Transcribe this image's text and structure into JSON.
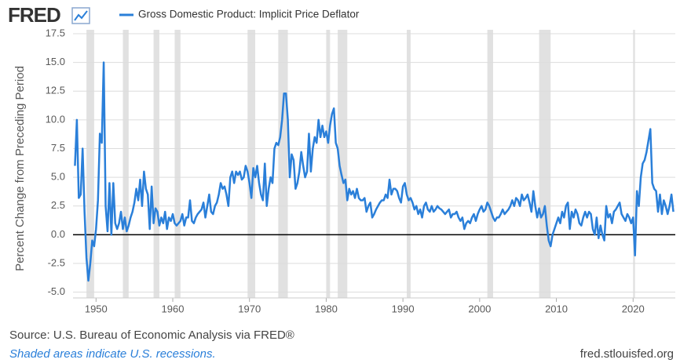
{
  "logo": "FRED",
  "chart_data": {
    "type": "line",
    "y_label": "Percent Change from Preceding Period",
    "series": [
      {
        "name": "Gross Domestic Product: Implicit Price Deflator",
        "color": "#2a7fd9",
        "x": [
          1947.25,
          1947.5,
          1947.75,
          1948,
          1948.25,
          1948.5,
          1948.75,
          1949,
          1949.25,
          1949.5,
          1949.75,
          1950,
          1950.25,
          1950.5,
          1950.75,
          1951,
          1951.25,
          1951.5,
          1951.75,
          1952,
          1952.25,
          1952.5,
          1952.75,
          1953,
          1953.25,
          1953.5,
          1953.75,
          1954,
          1954.25,
          1954.5,
          1954.75,
          1955,
          1955.25,
          1955.5,
          1955.75,
          1956,
          1956.25,
          1956.5,
          1956.75,
          1957,
          1957.25,
          1957.5,
          1957.75,
          1958,
          1958.25,
          1958.5,
          1958.75,
          1959,
          1959.25,
          1959.5,
          1959.75,
          1960,
          1960.25,
          1960.5,
          1960.75,
          1961,
          1961.25,
          1961.5,
          1961.75,
          1962,
          1962.25,
          1962.5,
          1962.75,
          1963,
          1963.25,
          1963.5,
          1963.75,
          1964,
          1964.25,
          1964.5,
          1964.75,
          1965,
          1965.25,
          1965.5,
          1965.75,
          1966,
          1966.25,
          1966.5,
          1966.75,
          1967,
          1967.25,
          1967.5,
          1967.75,
          1968,
          1968.25,
          1968.5,
          1968.75,
          1969,
          1969.25,
          1969.5,
          1969.75,
          1970,
          1970.25,
          1970.5,
          1970.75,
          1971,
          1971.25,
          1971.5,
          1971.75,
          1972,
          1972.25,
          1972.5,
          1972.75,
          1973,
          1973.25,
          1973.5,
          1973.75,
          1974,
          1974.25,
          1974.5,
          1974.75,
          1975,
          1975.25,
          1975.5,
          1975.75,
          1976,
          1976.25,
          1976.5,
          1976.75,
          1977,
          1977.25,
          1977.5,
          1977.75,
          1978,
          1978.25,
          1978.5,
          1978.75,
          1979,
          1979.25,
          1979.5,
          1979.75,
          1980,
          1980.25,
          1980.5,
          1980.75,
          1981,
          1981.25,
          1981.5,
          1981.75,
          1982,
          1982.25,
          1982.5,
          1982.75,
          1983,
          1983.25,
          1983.5,
          1983.75,
          1984,
          1984.25,
          1984.5,
          1984.75,
          1985,
          1985.25,
          1985.5,
          1985.75,
          1986,
          1986.25,
          1986.5,
          1986.75,
          1987,
          1987.25,
          1987.5,
          1987.75,
          1988,
          1988.25,
          1988.5,
          1988.75,
          1989,
          1989.25,
          1989.5,
          1989.75,
          1990,
          1990.25,
          1990.5,
          1990.75,
          1991,
          1991.25,
          1991.5,
          1991.75,
          1992,
          1992.25,
          1992.5,
          1992.75,
          1993,
          1993.25,
          1993.5,
          1993.75,
          1994,
          1994.25,
          1994.5,
          1994.75,
          1995,
          1995.25,
          1995.5,
          1995.75,
          1996,
          1996.25,
          1996.5,
          1996.75,
          1997,
          1997.25,
          1997.5,
          1997.75,
          1998,
          1998.25,
          1998.5,
          1998.75,
          1999,
          1999.25,
          1999.5,
          1999.75,
          2000,
          2000.25,
          2000.5,
          2000.75,
          2001,
          2001.25,
          2001.5,
          2001.75,
          2002,
          2002.25,
          2002.5,
          2002.75,
          2003,
          2003.25,
          2003.5,
          2003.75,
          2004,
          2004.25,
          2004.5,
          2004.75,
          2005,
          2005.25,
          2005.5,
          2005.75,
          2006,
          2006.25,
          2006.5,
          2006.75,
          2007,
          2007.25,
          2007.5,
          2007.75,
          2008,
          2008.25,
          2008.5,
          2008.75,
          2009,
          2009.25,
          2009.5,
          2009.75,
          2010,
          2010.25,
          2010.5,
          2010.75,
          2011,
          2011.25,
          2011.5,
          2011.75,
          2012,
          2012.25,
          2012.5,
          2012.75,
          2013,
          2013.25,
          2013.5,
          2013.75,
          2014,
          2014.25,
          2014.5,
          2014.75,
          2015,
          2015.25,
          2015.5,
          2015.75,
          2016,
          2016.25,
          2016.5,
          2016.75,
          2017,
          2017.25,
          2017.5,
          2017.75,
          2018,
          2018.25,
          2018.5,
          2018.75,
          2019,
          2019.25,
          2019.5,
          2019.75,
          2020,
          2020.25,
          2020.5,
          2020.75,
          2021,
          2021.25,
          2021.5,
          2021.75,
          2022,
          2022.25,
          2022.5,
          2022.75,
          2023,
          2023.25,
          2023.5,
          2023.75,
          2024,
          2024.25,
          2024.5,
          2024.75,
          2025,
          2025.25
        ],
        "values": [
          6,
          10,
          3.2,
          3.5,
          7.5,
          2,
          -2,
          -4,
          -2.5,
          -0.5,
          -1,
          0.5,
          3,
          8.8,
          8,
          15,
          2.5,
          0.3,
          4.5,
          0,
          4.5,
          1,
          0.5,
          1,
          2,
          0.5,
          1.5,
          0.3,
          0.8,
          1.5,
          2,
          2.8,
          4,
          3,
          4.8,
          2.5,
          5.5,
          4,
          3.5,
          0.5,
          4.2,
          1,
          2.3,
          2,
          0.8,
          1.5,
          1,
          2,
          0.5,
          1.5,
          1.2,
          1.8,
          1,
          0.8,
          1,
          1.2,
          1.8,
          0.8,
          1.5,
          1.5,
          3,
          1.2,
          1,
          1.5,
          1.8,
          2,
          2.2,
          2.8,
          1.5,
          2.5,
          3.5,
          2,
          1.8,
          2.5,
          2.8,
          3.5,
          4.5,
          4,
          4.2,
          3.5,
          2.5,
          5,
          5.5,
          4.5,
          5.5,
          5.2,
          5.5,
          4.8,
          5,
          6,
          5.5,
          4.5,
          3.2,
          5.8,
          5,
          6,
          4.5,
          3.5,
          3,
          6.2,
          2.5,
          4,
          5,
          4.5,
          7.5,
          8,
          7.8,
          8.5,
          10,
          12.3,
          12.3,
          10,
          5,
          7,
          6.5,
          4,
          4.5,
          5.5,
          7.2,
          6,
          5,
          5.5,
          8.8,
          5.5,
          7.5,
          8.5,
          8,
          10,
          8.5,
          9.5,
          8.5,
          9,
          8,
          9.5,
          10.5,
          11,
          8,
          7.5,
          6,
          5.2,
          4.5,
          4.8,
          3,
          4,
          3.5,
          3.8,
          3.2,
          4,
          3.2,
          3,
          3,
          3.2,
          2,
          2.5,
          2.8,
          1.5,
          1.8,
          2.2,
          2.5,
          2.8,
          3,
          3,
          3.5,
          3.2,
          4.8,
          3.5,
          4,
          4,
          3.8,
          3.2,
          2.8,
          4.2,
          4.5,
          3.5,
          3,
          3.2,
          2.8,
          2.2,
          2.5,
          1.8,
          2.2,
          1.5,
          2.5,
          2.8,
          2.2,
          2,
          2.5,
          2,
          2.2,
          2.5,
          2.3,
          2.2,
          2,
          1.8,
          2,
          2.2,
          1.5,
          1.8,
          1.8,
          2,
          1.5,
          1.2,
          1.5,
          0.5,
          1,
          1.2,
          1,
          1.5,
          1.8,
          1.2,
          1.8,
          2.2,
          2.5,
          2,
          2.2,
          2.8,
          2.5,
          2,
          1.5,
          1.2,
          1.5,
          1.5,
          1.8,
          2.2,
          1.8,
          2,
          2.2,
          2.5,
          3,
          2.5,
          3.2,
          3,
          2.5,
          3.5,
          3,
          3.2,
          3.5,
          2.8,
          2,
          3.8,
          2.5,
          1.5,
          2.3,
          1.5,
          1.8,
          2.5,
          0.8,
          -0.5,
          -1,
          0,
          0.5,
          1,
          1.5,
          1,
          2,
          1.5,
          2.5,
          2.8,
          0.5,
          2,
          1.5,
          2.2,
          1.8,
          1,
          0.8,
          1.5,
          2,
          1.5,
          2,
          1.8,
          0.5,
          0,
          1.5,
          -0.3,
          0.8,
          0,
          -0.5,
          2.5,
          1.5,
          1.8,
          1,
          2,
          2.2,
          2.5,
          2.8,
          1.8,
          1.5,
          1.2,
          1.8,
          1.5,
          1,
          1.5,
          -1.8,
          3.8,
          2.5,
          5,
          6.2,
          6.5,
          7.2,
          8.2,
          9.2,
          4.5,
          4,
          3.8,
          2,
          3.5,
          1.8,
          3,
          2.5,
          1.8,
          2.5,
          3.5,
          2
        ]
      }
    ],
    "recessions": [
      [
        1948.75,
        1949.75
      ],
      [
        1953.5,
        1954.25
      ],
      [
        1957.5,
        1958.25
      ],
      [
        1960.25,
        1961
      ],
      [
        1969.75,
        1970.75
      ],
      [
        1973.75,
        1975
      ],
      [
        1980,
        1980.5
      ],
      [
        1981.5,
        1982.75
      ],
      [
        1990.5,
        1991
      ],
      [
        2001,
        2001.75
      ],
      [
        2007.75,
        2009.25
      ],
      [
        2020,
        2020.25
      ]
    ],
    "recession_color": "#e1e1e1",
    "xlim": [
      1947,
      2025.5
    ],
    "xticks": [
      1950,
      1960,
      1970,
      1980,
      1990,
      2000,
      2010,
      2020
    ],
    "ylim": [
      -5.5,
      17.5
    ],
    "yticks": [
      17.5,
      {
        "value": 15,
        "label": "15.0"
      },
      12.5,
      {
        "value": 10,
        "label": "10.0"
      },
      7.5,
      {
        "value": 5,
        "label": "5.0"
      },
      2.5,
      {
        "value": 0,
        "label": "0.0"
      },
      -2.5,
      {
        "value": -5,
        "label": "-5.0"
      }
    ],
    "grid": true
  },
  "footer": {
    "source": "Source: U.S. Bureau of Economic Analysis via FRED®",
    "note": "Shaded areas indicate U.S. recessions.",
    "site": "fred.stlouisfed.org"
  }
}
